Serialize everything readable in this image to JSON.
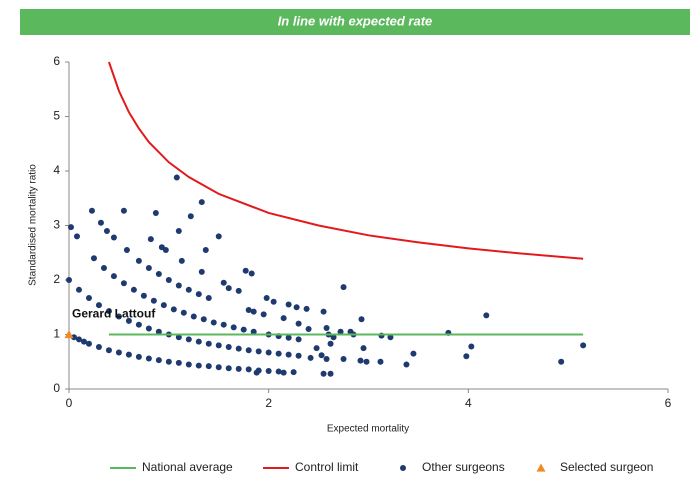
{
  "chart_data": {
    "type": "scatter",
    "title": "In line with expected rate",
    "x_label": "Expected mortality",
    "y_label": "Standardised mortality ratio",
    "xlim": [
      0,
      6
    ],
    "xticks": [
      0,
      2,
      4,
      6
    ],
    "ylim": [
      0,
      6
    ],
    "yticks": [
      0,
      1,
      2,
      3,
      4,
      5,
      6
    ],
    "grid": false,
    "legend": "bottom",
    "annotations": [
      "Gerard Lattouf"
    ],
    "series": [
      {
        "name": "National average",
        "mark": "line",
        "color": "#5cb85c",
        "x": [
          0.4,
          5.15
        ],
        "values": [
          1,
          1
        ]
      },
      {
        "name": "Control limit",
        "mark": "line",
        "color": "#e31a1c",
        "x": [
          0.4,
          0.5,
          0.6,
          0.7,
          0.8,
          1,
          1.2,
          1.5,
          2,
          2.5,
          3,
          3.5,
          4,
          4.5,
          5.15
        ],
        "values": [
          6.0,
          5.47,
          5.08,
          4.78,
          4.53,
          4.16,
          3.89,
          3.58,
          3.23,
          3.0,
          2.82,
          2.69,
          2.58,
          2.49,
          2.39
        ]
      },
      {
        "name": "Other surgeons",
        "mark": "dot",
        "color": "#1f3a6e",
        "x": [
          0.05,
          0.1,
          0.15,
          0.2,
          0.3,
          0.4,
          0.5,
          0.6,
          0.7,
          0.8,
          0.9,
          1.0,
          1.1,
          1.2,
          1.3,
          1.4,
          1.5,
          1.6,
          1.7,
          1.8,
          1.9,
          2.0,
          2.1,
          2.25,
          0.0,
          0.1,
          0.2,
          0.3,
          0.4,
          0.5,
          0.6,
          0.7,
          0.8,
          0.9,
          1.0,
          1.1,
          1.2,
          1.3,
          1.4,
          1.5,
          1.6,
          1.7,
          1.8,
          1.9,
          2.0,
          2.1,
          2.2,
          2.3,
          0.25,
          0.35,
          0.45,
          0.55,
          0.65,
          0.75,
          0.85,
          0.95,
          1.05,
          1.15,
          1.25,
          1.35,
          1.45,
          1.55,
          1.65,
          1.75,
          1.85,
          2.0,
          2.1,
          2.2,
          2.3,
          0.7,
          0.8,
          0.9,
          1.0,
          1.1,
          1.2,
          1.3,
          1.4,
          0.02,
          0.08,
          0.23,
          0.32,
          0.38,
          0.45,
          0.55,
          0.58,
          0.82,
          0.87,
          0.93,
          0.97,
          1.08,
          1.1,
          1.22,
          1.33,
          1.37,
          1.5,
          1.13,
          1.33,
          1.55,
          1.6,
          1.7,
          1.77,
          1.83,
          1.8,
          1.85,
          1.95,
          1.98,
          2.05,
          2.15,
          2.2,
          2.28,
          2.38,
          2.3,
          2.4,
          2.55,
          2.58,
          2.6,
          2.48,
          2.53,
          2.58,
          2.55,
          2.62,
          2.62,
          2.65,
          2.72,
          2.75,
          2.75,
          2.82,
          2.85,
          2.93,
          2.95,
          2.92,
          2.98,
          3.12,
          3.13,
          3.22,
          3.38,
          3.45,
          3.8,
          3.98,
          4.03,
          4.18,
          4.93,
          5.15,
          2.42,
          2.15,
          1.88
        ],
        "values": [
          0.95,
          0.91,
          0.87,
          0.83,
          0.77,
          0.71,
          0.67,
          0.63,
          0.59,
          0.56,
          0.53,
          0.5,
          0.48,
          0.45,
          0.43,
          0.42,
          0.4,
          0.38,
          0.37,
          0.36,
          0.34,
          0.33,
          0.32,
          0.31,
          2.0,
          1.82,
          1.67,
          1.54,
          1.43,
          1.33,
          1.25,
          1.18,
          1.11,
          1.05,
          1.0,
          0.95,
          0.91,
          0.87,
          0.83,
          0.8,
          0.77,
          0.74,
          0.71,
          0.69,
          0.67,
          0.65,
          0.63,
          0.61,
          2.4,
          2.22,
          2.07,
          1.94,
          1.82,
          1.71,
          1.62,
          1.54,
          1.46,
          1.4,
          1.33,
          1.28,
          1.22,
          1.18,
          1.13,
          1.09,
          1.05,
          1.0,
          0.97,
          0.94,
          0.91,
          2.35,
          2.22,
          2.11,
          2.0,
          1.9,
          1.82,
          1.74,
          1.67,
          2.97,
          2.8,
          3.27,
          3.05,
          2.9,
          2.78,
          3.27,
          2.55,
          2.75,
          3.23,
          2.6,
          2.55,
          3.88,
          2.9,
          3.17,
          3.43,
          2.55,
          2.8,
          2.35,
          2.15,
          1.95,
          1.85,
          1.8,
          2.17,
          2.12,
          1.45,
          1.42,
          1.37,
          1.67,
          1.6,
          1.3,
          1.55,
          1.5,
          1.47,
          1.2,
          1.1,
          1.42,
          1.12,
          1.0,
          0.75,
          0.62,
          0.55,
          0.28,
          0.28,
          0.83,
          0.95,
          1.05,
          1.87,
          0.55,
          1.05,
          1.0,
          1.28,
          0.75,
          0.52,
          0.5,
          0.5,
          0.98,
          0.95,
          0.45,
          0.65,
          1.03,
          0.6,
          0.78,
          1.35,
          0.5,
          0.8,
          0.57,
          0.3,
          0.3
        ]
      },
      {
        "name": "Selected surgeon",
        "mark": "triangle",
        "color": "#f08a24",
        "x": [
          0
        ],
        "values": [
          1
        ]
      }
    ]
  }
}
